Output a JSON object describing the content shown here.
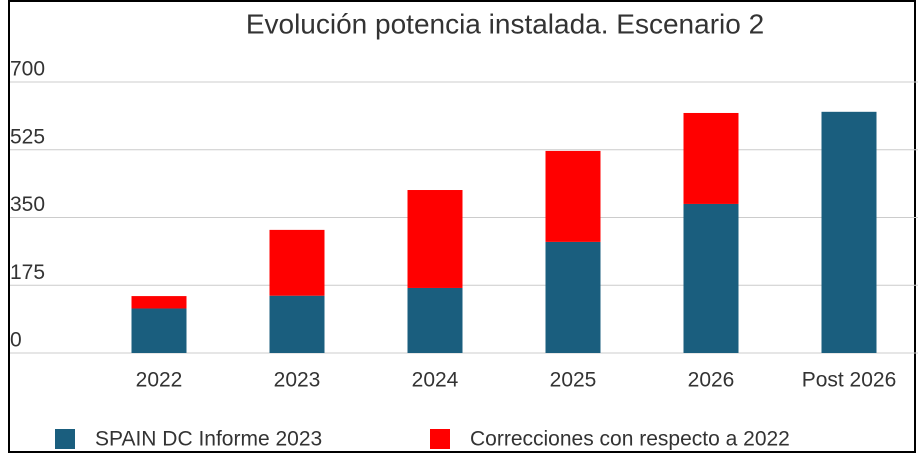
{
  "chart_data": {
    "type": "stacked_bar",
    "title": "Evolución potencia instalada. Escenario 2",
    "categories": [
      "2022",
      "2023",
      "2024",
      "2025",
      "2026",
      "Post 2026"
    ],
    "series": [
      {
        "name": "SPAIN DC Informe 2023",
        "color": "#1a5e7e",
        "values": [
          115,
          148,
          168,
          287,
          385,
          623
        ]
      },
      {
        "name": "Correcciones con respecto a 2022",
        "color": "#ff0000",
        "values": [
          32,
          170,
          253,
          235,
          235,
          0
        ]
      }
    ],
    "ylim": [
      0,
      700
    ],
    "yticks": [
      0,
      175,
      350,
      525,
      700
    ],
    "grid": true,
    "legend": "bottom"
  }
}
